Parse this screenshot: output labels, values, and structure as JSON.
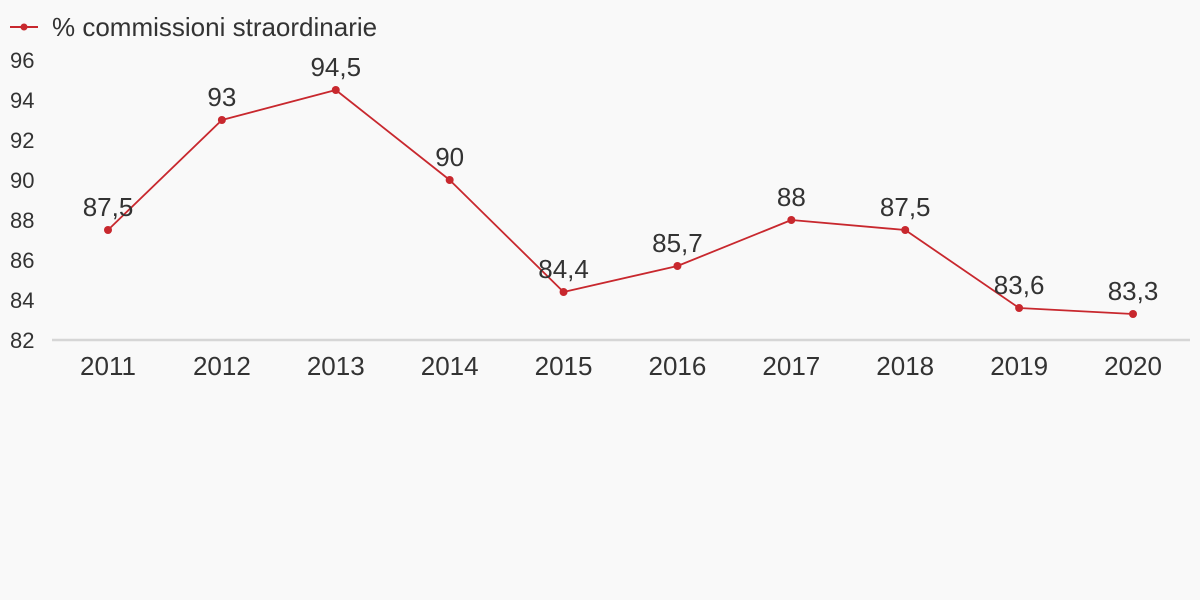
{
  "chart_data": {
    "type": "line",
    "title": "",
    "xlabel": "",
    "ylabel": "",
    "categories": [
      "2011",
      "2012",
      "2013",
      "2014",
      "2015",
      "2016",
      "2017",
      "2018",
      "2019",
      "2020"
    ],
    "series": [
      {
        "name": "% commissioni straordinarie",
        "values": [
          87.5,
          93,
          94.5,
          90,
          84.4,
          85.7,
          88,
          87.5,
          83.6,
          83.3
        ],
        "labels": [
          "87,5",
          "93",
          "94,5",
          "90",
          "84,4",
          "85,7",
          "88",
          "87,5",
          "83,6",
          "83,3"
        ],
        "color": "#c8282e"
      }
    ],
    "ylim": [
      82,
      96
    ],
    "yticks": [
      82,
      84,
      86,
      88,
      90,
      92,
      94,
      96
    ],
    "grid": false,
    "legend": "top-left",
    "data_labels": true
  },
  "colors": {
    "series": "#c8282e",
    "axis": "#d6d6d6",
    "text": "#333333",
    "background": "#f9f9f9"
  }
}
